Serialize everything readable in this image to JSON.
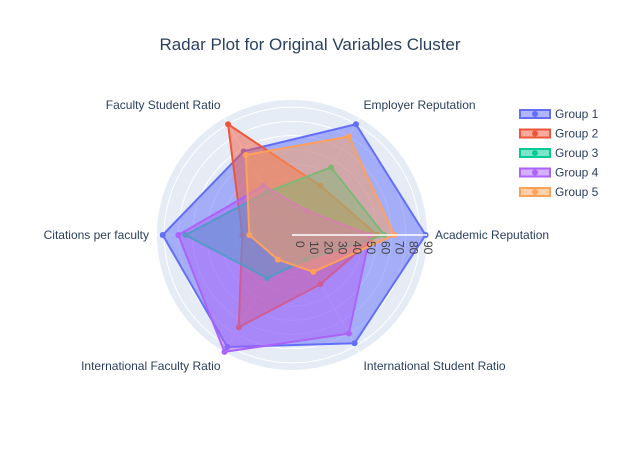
{
  "chart_data": {
    "type": "radar",
    "title": "Radar Plot for Original Variables Cluster",
    "categories": [
      "Academic Reputation",
      "Employer Reputation",
      "Faculty Student Ratio",
      "Citations per faculty",
      "International Faculty Ratio",
      "International Student Ratio"
    ],
    "radial_range": [
      0,
      95
    ],
    "radial_ticks": [
      0,
      10,
      20,
      30,
      40,
      50,
      60,
      70,
      80,
      90
    ],
    "legend_position": "top-right",
    "series": [
      {
        "name": "Group 1",
        "color": "#636efa",
        "values": [
          94,
          90,
          68,
          91,
          91,
          88
        ]
      },
      {
        "name": "Group 2",
        "color": "#EF553B",
        "values": [
          60,
          40,
          90,
          35,
          75,
          40
        ]
      },
      {
        "name": "Group 3",
        "color": "#00cc96",
        "values": [
          65,
          55,
          35,
          75,
          35,
          20
        ]
      },
      {
        "name": "Group 4",
        "color": "#ab63fa",
        "values": [
          55,
          20,
          40,
          80,
          95,
          80
        ]
      },
      {
        "name": "Group 5",
        "color": "#FFA15A",
        "values": [
          72,
          80,
          65,
          30,
          20,
          30
        ]
      }
    ]
  }
}
